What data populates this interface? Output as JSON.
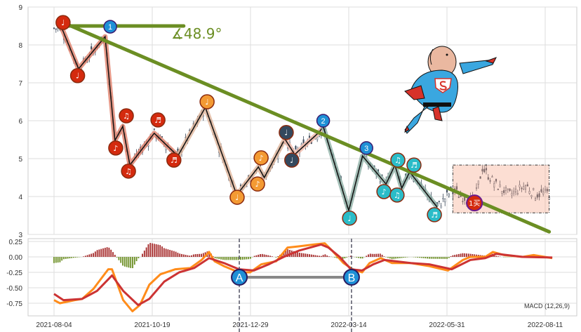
{
  "chart_data": {
    "type": "candlestick+macd",
    "price_panel": {
      "ylim": [
        3,
        9
      ],
      "yticks": [
        "3",
        "4",
        "5",
        "6",
        "7",
        "8",
        "9"
      ],
      "grid": true,
      "angle_label": "∡48.9°",
      "trendline": {
        "from": [
          4.6,
          8.59
        ],
        "to": [
          252,
          3.07
        ],
        "color": "#6b8e23"
      },
      "hline": {
        "price": 8.5,
        "from": 4.6,
        "to": 66
      },
      "zigzag": [
        {
          "color": "#e0806a",
          "points": [
            [
              4,
              8.44
            ],
            [
              12.5,
              7.37
            ],
            [
              26,
              8.22
            ],
            [
              31,
              5.48
            ],
            [
              35,
              5.85
            ],
            [
              38.6,
              4.83
            ],
            [
              51,
              5.67
            ],
            [
              63,
              5.07
            ]
          ]
        },
        {
          "color": "#deb49a",
          "points": [
            [
              63,
              5.07
            ],
            [
              77,
              6.35
            ],
            [
              93,
              4.04
            ],
            [
              104,
              4.78
            ],
            [
              107,
              4.5
            ],
            [
              117.5,
              5.52
            ]
          ]
        },
        {
          "color": "#f0b8a8",
          "points": [
            [
              117.5,
              5.52
            ],
            [
              122.5,
              5.11
            ],
            [
              135,
              5.7
            ],
            [
              137,
              5.85
            ]
          ]
        },
        {
          "color": "#8fb0a6",
          "points": [
            [
              137,
              5.85
            ],
            [
              150,
              3.63
            ],
            [
              157,
              5.07
            ],
            [
              169,
              4.33
            ],
            [
              173.5,
              4.83
            ],
            [
              177,
              4.22
            ],
            [
              181,
              4.65
            ],
            [
              195,
              3.72
            ]
          ]
        }
      ],
      "tail": [
        [
          195,
          3.72
        ],
        [
          203,
          4.2
        ],
        [
          207,
          4.0
        ],
        [
          214,
          3.9
        ],
        [
          218,
          4.75
        ],
        [
          225,
          4.3
        ],
        [
          232,
          4.05
        ],
        [
          240,
          4.3
        ],
        [
          245,
          4.05
        ],
        [
          252,
          4.1
        ]
      ],
      "markers": [
        {
          "bar": 4.6,
          "price": 8.59,
          "glyph": "♩",
          "color": "#d42a0e"
        },
        {
          "bar": 12,
          "price": 7.19,
          "glyph": "♩",
          "color": "#d42a0e"
        },
        {
          "bar": 31.4,
          "price": 5.28,
          "glyph": "♪",
          "color": "#d42a0e"
        },
        {
          "bar": 36.8,
          "price": 6.13,
          "glyph": "♫",
          "color": "#d42a0e"
        },
        {
          "bar": 37.9,
          "price": 4.67,
          "glyph": "♫",
          "color": "#d42a0e"
        },
        {
          "bar": 52.9,
          "price": 6.02,
          "glyph": "♬",
          "color": "#d42a0e"
        },
        {
          "bar": 61,
          "price": 4.96,
          "glyph": "♬",
          "color": "#d42a0e"
        },
        {
          "bar": 77.9,
          "price": 6.5,
          "glyph": "♩",
          "color": "#f39a33"
        },
        {
          "bar": 93.2,
          "price": 3.98,
          "glyph": "♩",
          "color": "#f39a33"
        },
        {
          "bar": 103.6,
          "price": 4.33,
          "glyph": "♪",
          "color": "#f39a33"
        },
        {
          "bar": 105.4,
          "price": 5.02,
          "glyph": "♪",
          "color": "#f39a33"
        },
        {
          "bar": 118.2,
          "price": 5.69,
          "glyph": "♩",
          "color": "#34495e"
        },
        {
          "bar": 121,
          "price": 4.96,
          "glyph": "♩",
          "color": "#34495e"
        },
        {
          "bar": 150.4,
          "price": 3.43,
          "glyph": "♩",
          "color": "#2bbcc8"
        },
        {
          "bar": 167.9,
          "price": 4.13,
          "glyph": "♪",
          "color": "#2bbcc8"
        },
        {
          "bar": 175,
          "price": 4.96,
          "glyph": "♫",
          "color": "#2bbcc8"
        },
        {
          "bar": 174.6,
          "price": 4.04,
          "glyph": "♫",
          "color": "#2bbcc8"
        },
        {
          "bar": 183.2,
          "price": 4.83,
          "glyph": "♬",
          "color": "#2bbcc8"
        },
        {
          "bar": 193.6,
          "price": 3.52,
          "glyph": "♬",
          "color": "#2bbcc8"
        }
      ],
      "numbered": [
        {
          "bar": 28.6,
          "price": 8.48,
          "label": "1"
        },
        {
          "bar": 137,
          "price": 6.0,
          "label": "2"
        },
        {
          "bar": 159,
          "price": 5.28,
          "label": "3"
        }
      ],
      "buy_box": {
        "bar_from": 203,
        "bar_to": 252,
        "price_low": 3.57,
        "price_high": 4.83
      },
      "buy_marker": {
        "bar": 214,
        "price": 3.83,
        "label": "1买"
      }
    },
    "macd_panel": {
      "title": "MACD (12,26,9)",
      "ylim": [
        -0.95,
        0.3
      ],
      "yticks": [
        {
          "v": 0.25,
          "t": "0.25"
        },
        {
          "v": 0,
          "t": "0.00"
        },
        {
          "v": -0.25,
          "t": "-0.25"
        },
        {
          "v": -0.5,
          "t": "-0.50"
        },
        {
          "v": -0.75,
          "t": "-0.75"
        }
      ],
      "dif": [
        [
          0,
          -0.7
        ],
        [
          3,
          -0.75
        ],
        [
          10.5,
          -0.7
        ],
        [
          14.3,
          -0.68
        ],
        [
          20,
          -0.52
        ],
        [
          27.6,
          -0.2
        ],
        [
          29.5,
          -0.2
        ],
        [
          35.2,
          -0.7
        ],
        [
          39.9,
          -0.88
        ],
        [
          43.7,
          -0.78
        ],
        [
          48.5,
          -0.45
        ],
        [
          54.2,
          -0.28
        ],
        [
          61.8,
          -0.2
        ],
        [
          69.4,
          -0.18
        ],
        [
          75.1,
          -0.05
        ],
        [
          78.9,
          0.08
        ],
        [
          81.7,
          -0.07
        ],
        [
          86.5,
          -0.15
        ],
        [
          94.1,
          -0.25
        ],
        [
          99.8,
          -0.25
        ],
        [
          105.5,
          -0.12
        ],
        [
          113.1,
          -0.07
        ],
        [
          118.8,
          0.15
        ],
        [
          124.5,
          0.17
        ],
        [
          132.1,
          0.2
        ],
        [
          137.8,
          0.22
        ],
        [
          141.6,
          0.1
        ],
        [
          147.3,
          -0.1
        ],
        [
          152,
          -0.2
        ],
        [
          156.8,
          -0.25
        ],
        [
          160.6,
          -0.1
        ],
        [
          166.3,
          -0.02
        ],
        [
          172,
          -0.1
        ],
        [
          181.5,
          -0.1
        ],
        [
          191,
          -0.15
        ],
        [
          200.5,
          -0.22
        ],
        [
          208.1,
          -0.05
        ],
        [
          211.9,
          0.0
        ],
        [
          219.5,
          0.0
        ],
        [
          223.3,
          0.08
        ],
        [
          229,
          0.03
        ],
        [
          238.5,
          0.0
        ],
        [
          244.1,
          0.03
        ],
        [
          253.6,
          -0.02
        ]
      ],
      "dea": [
        [
          0,
          -0.6
        ],
        [
          4.8,
          -0.7
        ],
        [
          14.3,
          -0.68
        ],
        [
          21.9,
          -0.55
        ],
        [
          29.5,
          -0.3
        ],
        [
          35.2,
          -0.55
        ],
        [
          42.8,
          -0.78
        ],
        [
          48.5,
          -0.68
        ],
        [
          56.1,
          -0.4
        ],
        [
          63.7,
          -0.25
        ],
        [
          71.3,
          -0.18
        ],
        [
          78.9,
          -0.02
        ],
        [
          86.5,
          -0.1
        ],
        [
          94.1,
          -0.2
        ],
        [
          101.7,
          -0.22
        ],
        [
          109.3,
          -0.12
        ],
        [
          116.9,
          0.0
        ],
        [
          124.5,
          0.1
        ],
        [
          135.9,
          0.2
        ],
        [
          139.7,
          0.15
        ],
        [
          145.4,
          0.0
        ],
        [
          151.1,
          -0.2
        ],
        [
          156.8,
          -0.22
        ],
        [
          162.5,
          -0.12
        ],
        [
          168.2,
          -0.05
        ],
        [
          181.5,
          -0.1
        ],
        [
          191,
          -0.12
        ],
        [
          202.4,
          -0.2
        ],
        [
          211.9,
          -0.05
        ],
        [
          219.5,
          -0.02
        ],
        [
          225.1,
          0.05
        ],
        [
          238.5,
          0.0
        ],
        [
          253.6,
          -0.01
        ]
      ],
      "divergence": [
        {
          "bar": 94.3,
          "value": -0.33,
          "label": "A"
        },
        {
          "bar": 151.4,
          "value": -0.33,
          "label": "B"
        }
      ]
    },
    "x_ticks": [
      {
        "bar": 0,
        "t": "2021-08-04"
      },
      {
        "bar": 50,
        "t": "2021-10-19"
      },
      {
        "bar": 100,
        "t": "2021-12-29"
      },
      {
        "bar": 150,
        "t": "2022-03-14"
      },
      {
        "bar": 200,
        "t": "2022-05-31"
      },
      {
        "bar": 250,
        "t": "2022-08-11"
      }
    ],
    "colors": {
      "dif": "#ff8c1a",
      "dea": "#cc3333",
      "hist_pos": "#a52a2a",
      "hist_neg": "#6b8e23",
      "candle": "#3d4b5c",
      "marker_blue": "#1e90d6"
    }
  }
}
